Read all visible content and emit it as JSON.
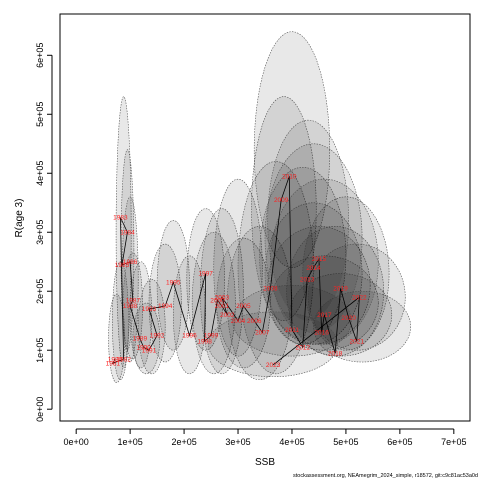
{
  "chart_data": {
    "type": "scatter",
    "title": "",
    "xlabel": "SSB",
    "ylabel": "R(age 3)",
    "xlim": [
      -30000,
      730000
    ],
    "ylim": [
      -20000,
      670000
    ],
    "x_ticks": [
      0,
      100000,
      200000,
      300000,
      400000,
      500000,
      600000,
      700000
    ],
    "x_tick_labels": [
      "0e+00",
      "1e+05",
      "2e+05",
      "3e+05",
      "4e+05",
      "5e+05",
      "6e+05",
      "7e+05"
    ],
    "y_ticks": [
      0,
      100000,
      200000,
      300000,
      400000,
      500000,
      600000
    ],
    "y_tick_labels": [
      "0e+00",
      "1e+05",
      "2e+05",
      "3e+05",
      "4e+05",
      "5e+05",
      "6e+05"
    ],
    "connect_points": true,
    "point_label_color": "#ff2020",
    "ellipse_fill_color": "#000000",
    "points": [
      {
        "year": "1980",
        "ssb": 72000,
        "rec": 85000
      },
      {
        "year": "1981",
        "ssb": 68000,
        "rec": 78000
      },
      {
        "year": "1982",
        "ssb": 88000,
        "rec": 85000
      },
      {
        "year": "1983",
        "ssb": 82000,
        "rec": 325000
      },
      {
        "year": "1984",
        "ssb": 95000,
        "rec": 300000
      },
      {
        "year": "1985",
        "ssb": 85000,
        "rec": 245000
      },
      {
        "year": "1986",
        "ssb": 100000,
        "rec": 250000
      },
      {
        "year": "1987",
        "ssb": 105000,
        "rec": 185000
      },
      {
        "year": "1988",
        "ssb": 100000,
        "rec": 175000
      },
      {
        "year": "1989",
        "ssb": 118000,
        "rec": 120000
      },
      {
        "year": "1990",
        "ssb": 125000,
        "rec": 105000
      },
      {
        "year": "1991",
        "ssb": 135000,
        "rec": 100000
      },
      {
        "year": "1992",
        "ssb": 150000,
        "rec": 125000
      },
      {
        "year": "1993",
        "ssb": 135000,
        "rec": 170000
      },
      {
        "year": "1994",
        "ssb": 165000,
        "rec": 175000
      },
      {
        "year": "1995",
        "ssb": 180000,
        "rec": 215000
      },
      {
        "year": "1996",
        "ssb": 210000,
        "rec": 125000
      },
      {
        "year": "1997",
        "ssb": 240000,
        "rec": 230000
      },
      {
        "year": "1998",
        "ssb": 238000,
        "rec": 115000
      },
      {
        "year": "1999",
        "ssb": 250000,
        "rec": 125000
      },
      {
        "year": "2000",
        "ssb": 262000,
        "rec": 185000
      },
      {
        "year": "2001",
        "ssb": 270000,
        "rec": 175000
      },
      {
        "year": "2002",
        "ssb": 280000,
        "rec": 160000
      },
      {
        "year": "2003",
        "ssb": 270000,
        "rec": 190000
      },
      {
        "year": "2004",
        "ssb": 300000,
        "rec": 150000
      },
      {
        "year": "2005",
        "ssb": 310000,
        "rec": 175000
      },
      {
        "year": "2006",
        "ssb": 330000,
        "rec": 150000
      },
      {
        "year": "2007",
        "ssb": 345000,
        "rec": 130000
      },
      {
        "year": "2008",
        "ssb": 360000,
        "rec": 205000
      },
      {
        "year": "2009",
        "ssb": 380000,
        "rec": 355000
      },
      {
        "year": "2010",
        "ssb": 395000,
        "rec": 395000
      },
      {
        "year": "2011",
        "ssb": 400000,
        "rec": 135000
      },
      {
        "year": "2012",
        "ssb": 420000,
        "rec": 105000
      },
      {
        "year": "2013",
        "ssb": 428000,
        "rec": 220000
      },
      {
        "year": "2014",
        "ssb": 440000,
        "rec": 240000
      },
      {
        "year": "2015",
        "ssb": 450000,
        "rec": 255000
      },
      {
        "year": "2016",
        "ssb": 455000,
        "rec": 130000
      },
      {
        "year": "2017",
        "ssb": 460000,
        "rec": 160000
      },
      {
        "year": "2018",
        "ssb": 480000,
        "rec": 95000
      },
      {
        "year": "2019",
        "ssb": 490000,
        "rec": 205000
      },
      {
        "year": "2020",
        "ssb": 505000,
        "rec": 155000
      },
      {
        "year": "2021",
        "ssb": 520000,
        "rec": 115000
      },
      {
        "year": "2022",
        "ssb": 525000,
        "rec": 190000
      },
      {
        "year": "2023",
        "ssb": 365000,
        "rec": 75000
      }
    ],
    "ellipses": [
      {
        "x": 88000,
        "y": 300000,
        "rx": 14000,
        "ry": 230000
      },
      {
        "x": 95000,
        "y": 270000,
        "rx": 12000,
        "ry": 170000
      },
      {
        "x": 100000,
        "y": 220000,
        "rx": 15000,
        "ry": 140000
      },
      {
        "x": 75000,
        "y": 120000,
        "rx": 15000,
        "ry": 75000
      },
      {
        "x": 82000,
        "y": 150000,
        "rx": 15000,
        "ry": 100000
      },
      {
        "x": 105000,
        "y": 175000,
        "rx": 18000,
        "ry": 90000
      },
      {
        "x": 120000,
        "y": 160000,
        "rx": 20000,
        "ry": 90000
      },
      {
        "x": 130000,
        "y": 120000,
        "rx": 25000,
        "ry": 60000
      },
      {
        "x": 140000,
        "y": 140000,
        "rx": 25000,
        "ry": 80000
      },
      {
        "x": 165000,
        "y": 180000,
        "rx": 30000,
        "ry": 100000
      },
      {
        "x": 180000,
        "y": 210000,
        "rx": 30000,
        "ry": 110000
      },
      {
        "x": 210000,
        "y": 160000,
        "rx": 30000,
        "ry": 100000
      },
      {
        "x": 240000,
        "y": 220000,
        "rx": 35000,
        "ry": 120000
      },
      {
        "x": 255000,
        "y": 180000,
        "rx": 40000,
        "ry": 120000
      },
      {
        "x": 270000,
        "y": 200000,
        "rx": 40000,
        "ry": 140000
      },
      {
        "x": 300000,
        "y": 240000,
        "rx": 45000,
        "ry": 150000
      },
      {
        "x": 310000,
        "y": 180000,
        "rx": 50000,
        "ry": 110000
      },
      {
        "x": 340000,
        "y": 180000,
        "rx": 60000,
        "ry": 130000
      },
      {
        "x": 370000,
        "y": 240000,
        "rx": 70000,
        "ry": 180000
      },
      {
        "x": 385000,
        "y": 340000,
        "rx": 60000,
        "ry": 190000
      },
      {
        "x": 400000,
        "y": 440000,
        "rx": 70000,
        "ry": 200000
      },
      {
        "x": 420000,
        "y": 260000,
        "rx": 80000,
        "ry": 150000
      },
      {
        "x": 440000,
        "y": 230000,
        "rx": 90000,
        "ry": 120000
      },
      {
        "x": 450000,
        "y": 210000,
        "rx": 95000,
        "ry": 100000
      },
      {
        "x": 460000,
        "y": 180000,
        "rx": 100000,
        "ry": 80000
      },
      {
        "x": 480000,
        "y": 200000,
        "rx": 90000,
        "ry": 110000
      },
      {
        "x": 490000,
        "y": 160000,
        "rx": 95000,
        "ry": 70000
      },
      {
        "x": 500000,
        "y": 230000,
        "rx": 80000,
        "ry": 130000
      },
      {
        "x": 520000,
        "y": 190000,
        "rx": 90000,
        "ry": 90000
      },
      {
        "x": 530000,
        "y": 140000,
        "rx": 90000,
        "ry": 60000
      },
      {
        "x": 400000,
        "y": 150000,
        "rx": 110000,
        "ry": 60000
      },
      {
        "x": 365000,
        "y": 110000,
        "rx": 120000,
        "ry": 55000
      },
      {
        "x": 440000,
        "y": 290000,
        "rx": 90000,
        "ry": 160000
      },
      {
        "x": 460000,
        "y": 250000,
        "rx": 100000,
        "ry": 140000
      },
      {
        "x": 430000,
        "y": 320000,
        "rx": 75000,
        "ry": 170000
      }
    ]
  },
  "credit": "stockassessment.org, NEAmegrim_2024_simple, r18572, git:c9c81ac53a0d"
}
